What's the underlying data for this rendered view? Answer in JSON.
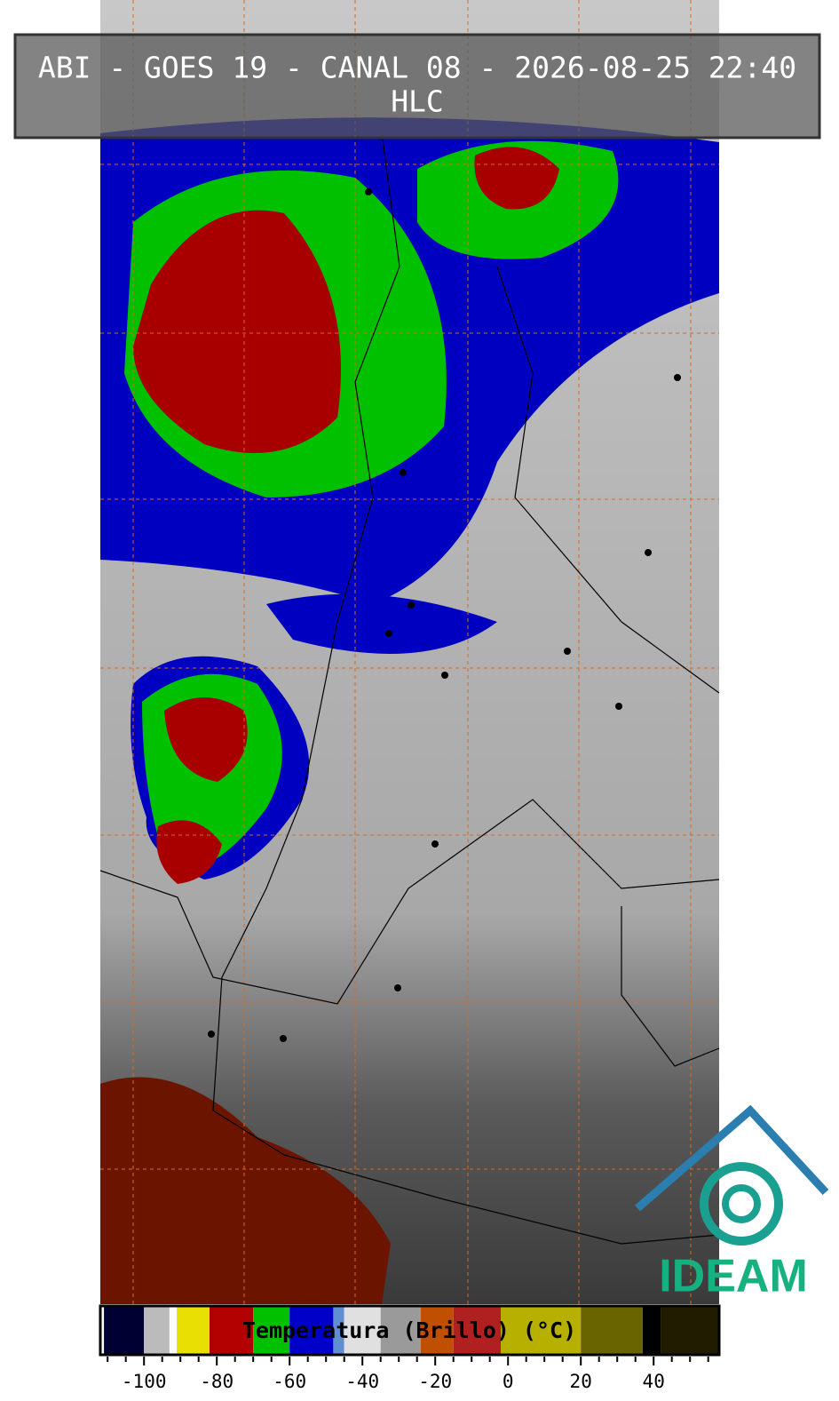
{
  "header": {
    "title": "ABI - GOES 19 - CANAL 08 - 2026-08-25 22:40",
    "subtitle": "HLC"
  },
  "logo": {
    "text": "IDEAM"
  },
  "colorbar": {
    "label": "Temperatura (Brillo) (°C)",
    "xlim": [
      -112,
      58
    ],
    "xticks": [
      -100,
      -80,
      -60,
      -40,
      -20,
      0,
      20,
      40
    ],
    "minor_ticks": [
      -110,
      -105,
      -95,
      -90,
      -85,
      -75,
      -70,
      -65,
      -55,
      -50,
      -45,
      -35,
      -30,
      -25,
      -15,
      -10,
      -5,
      5,
      10,
      15,
      25,
      30,
      35,
      45,
      50,
      55
    ],
    "segments": [
      {
        "from": -112,
        "to": -111,
        "color": "#ffffff"
      },
      {
        "from": -111,
        "to": -100,
        "color": "#000033"
      },
      {
        "from": -100,
        "to": -93,
        "color": "#bbbbbb"
      },
      {
        "from": -93,
        "to": -91,
        "color": "#ffffff"
      },
      {
        "from": -91,
        "to": -82,
        "color": "#e8e000"
      },
      {
        "from": -82,
        "to": -70,
        "color": "#b30000"
      },
      {
        "from": -70,
        "to": -60,
        "color": "#00c000"
      },
      {
        "from": -60,
        "to": -48,
        "color": "#0000c8"
      },
      {
        "from": -48,
        "to": -45,
        "color": "#5f8fd0"
      },
      {
        "from": -45,
        "to": -35,
        "color": "#e0e0e0"
      },
      {
        "from": -35,
        "to": -24,
        "color": "#9a9a9a"
      },
      {
        "from": -24,
        "to": -15,
        "color": "#c05000"
      },
      {
        "from": -15,
        "to": -2,
        "color": "#b02020"
      },
      {
        "from": -2,
        "to": 20,
        "color": "#b8b000"
      },
      {
        "from": 20,
        "to": 37,
        "color": "#6a6400"
      },
      {
        "from": 37,
        "to": 42,
        "color": "#000000"
      },
      {
        "from": 42,
        "to": 58,
        "color": "#201c00"
      }
    ]
  }
}
